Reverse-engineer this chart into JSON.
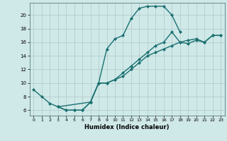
{
  "xlabel": "Humidex (Indice chaleur)",
  "background_color": "#cfe8e8",
  "grid_color": "#b0c8c8",
  "line_color": "#1a7070",
  "markersize": 2.5,
  "linewidth": 1.0,
  "xlim": [
    -0.5,
    23.5
  ],
  "ylim": [
    5.2,
    21.8
  ],
  "xticks": [
    0,
    1,
    2,
    3,
    4,
    5,
    6,
    7,
    8,
    9,
    10,
    11,
    12,
    13,
    14,
    15,
    16,
    17,
    18,
    19,
    20,
    21,
    22,
    23
  ],
  "yticks": [
    6,
    8,
    10,
    12,
    14,
    16,
    18,
    20
  ],
  "curve1_x": [
    0,
    1,
    2,
    3,
    4,
    5,
    6,
    7,
    8,
    9,
    10,
    11,
    12,
    13,
    14,
    15,
    16,
    17,
    18
  ],
  "curve1_y": [
    9.0,
    8.0,
    7.0,
    6.5,
    6.0,
    6.0,
    6.0,
    7.2,
    10.0,
    15.0,
    16.5,
    17.0,
    19.5,
    21.0,
    21.3,
    21.3,
    21.3,
    20.0,
    17.5
  ],
  "curve2_x": [
    3,
    4,
    5,
    6,
    7,
    8,
    9,
    10,
    11,
    12,
    13,
    14,
    15,
    16,
    17,
    18,
    19,
    20,
    21,
    22,
    23
  ],
  "curve2_y": [
    6.5,
    6.0,
    6.0,
    6.0,
    7.2,
    10.0,
    10.0,
    10.5,
    11.0,
    12.0,
    13.0,
    14.0,
    14.5,
    15.0,
    15.5,
    16.0,
    16.3,
    16.5,
    16.0,
    17.0,
    17.0
  ],
  "curve3_x": [
    3,
    7,
    8,
    9,
    10,
    11,
    12,
    13,
    14,
    15,
    16,
    17,
    18,
    19,
    20,
    21,
    22,
    23
  ],
  "curve3_y": [
    6.5,
    7.2,
    10.0,
    10.0,
    10.5,
    11.5,
    12.5,
    13.5,
    14.5,
    15.5,
    16.0,
    17.5,
    16.0,
    15.8,
    16.3,
    16.0,
    17.0,
    17.0
  ]
}
